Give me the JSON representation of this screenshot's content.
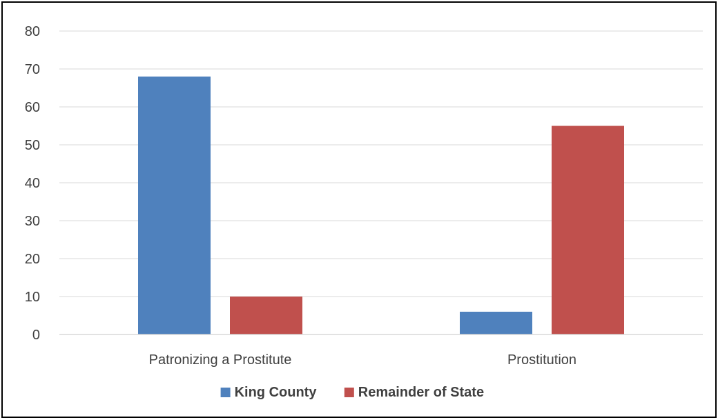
{
  "chart_data": {
    "type": "bar",
    "title": "",
    "xlabel": "",
    "ylabel": "",
    "categories": [
      "Patronizing a Prostitute",
      "Prostitution"
    ],
    "series": [
      {
        "name": "King County",
        "values": [
          68,
          6
        ],
        "color": "#4f81bd"
      },
      {
        "name": "Remainder of State",
        "values": [
          10,
          55
        ],
        "color": "#c0504d"
      }
    ],
    "ylim": [
      0,
      80
    ],
    "yticks": [
      0,
      10,
      20,
      30,
      40,
      50,
      60,
      70,
      80
    ],
    "grid": true,
    "legend_position": "bottom"
  }
}
